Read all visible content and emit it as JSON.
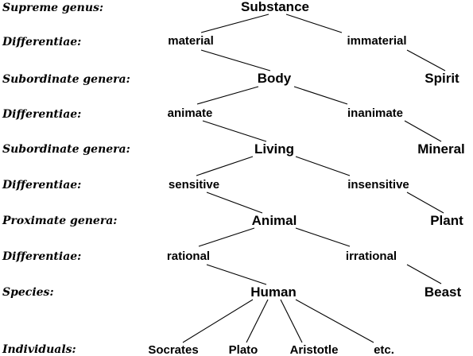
{
  "row_labels": {
    "supreme_genus": "Supreme genus:",
    "differentiae_1": "Differentiae:",
    "subordinate_genera_1": "Subordinate genera:",
    "differentiae_2": "Differentiae:",
    "subordinate_genera_2": "Subordinate genera:",
    "differentiae_3": "Differentiae:",
    "proximate_genera": "Proximate genera:",
    "differentiae_4": "Differentiae:",
    "species": "Species:",
    "individuals": "Individuals:"
  },
  "nodes": {
    "substance": "Substance",
    "material": "material",
    "immaterial": "immaterial",
    "body": "Body",
    "spirit": "Spirit",
    "animate": "animate",
    "inanimate": "inanimate",
    "living": "Living",
    "mineral": "Mineral",
    "sensitive": "sensitive",
    "insensitive": "insensitive",
    "animal": "Animal",
    "plant": "Plant",
    "rational": "rational",
    "irrational": "irrational",
    "human": "Human",
    "beast": "Beast",
    "socrates": "Socrates",
    "plato": "Plato",
    "aristotle": "Aristotle",
    "etc": "etc."
  }
}
